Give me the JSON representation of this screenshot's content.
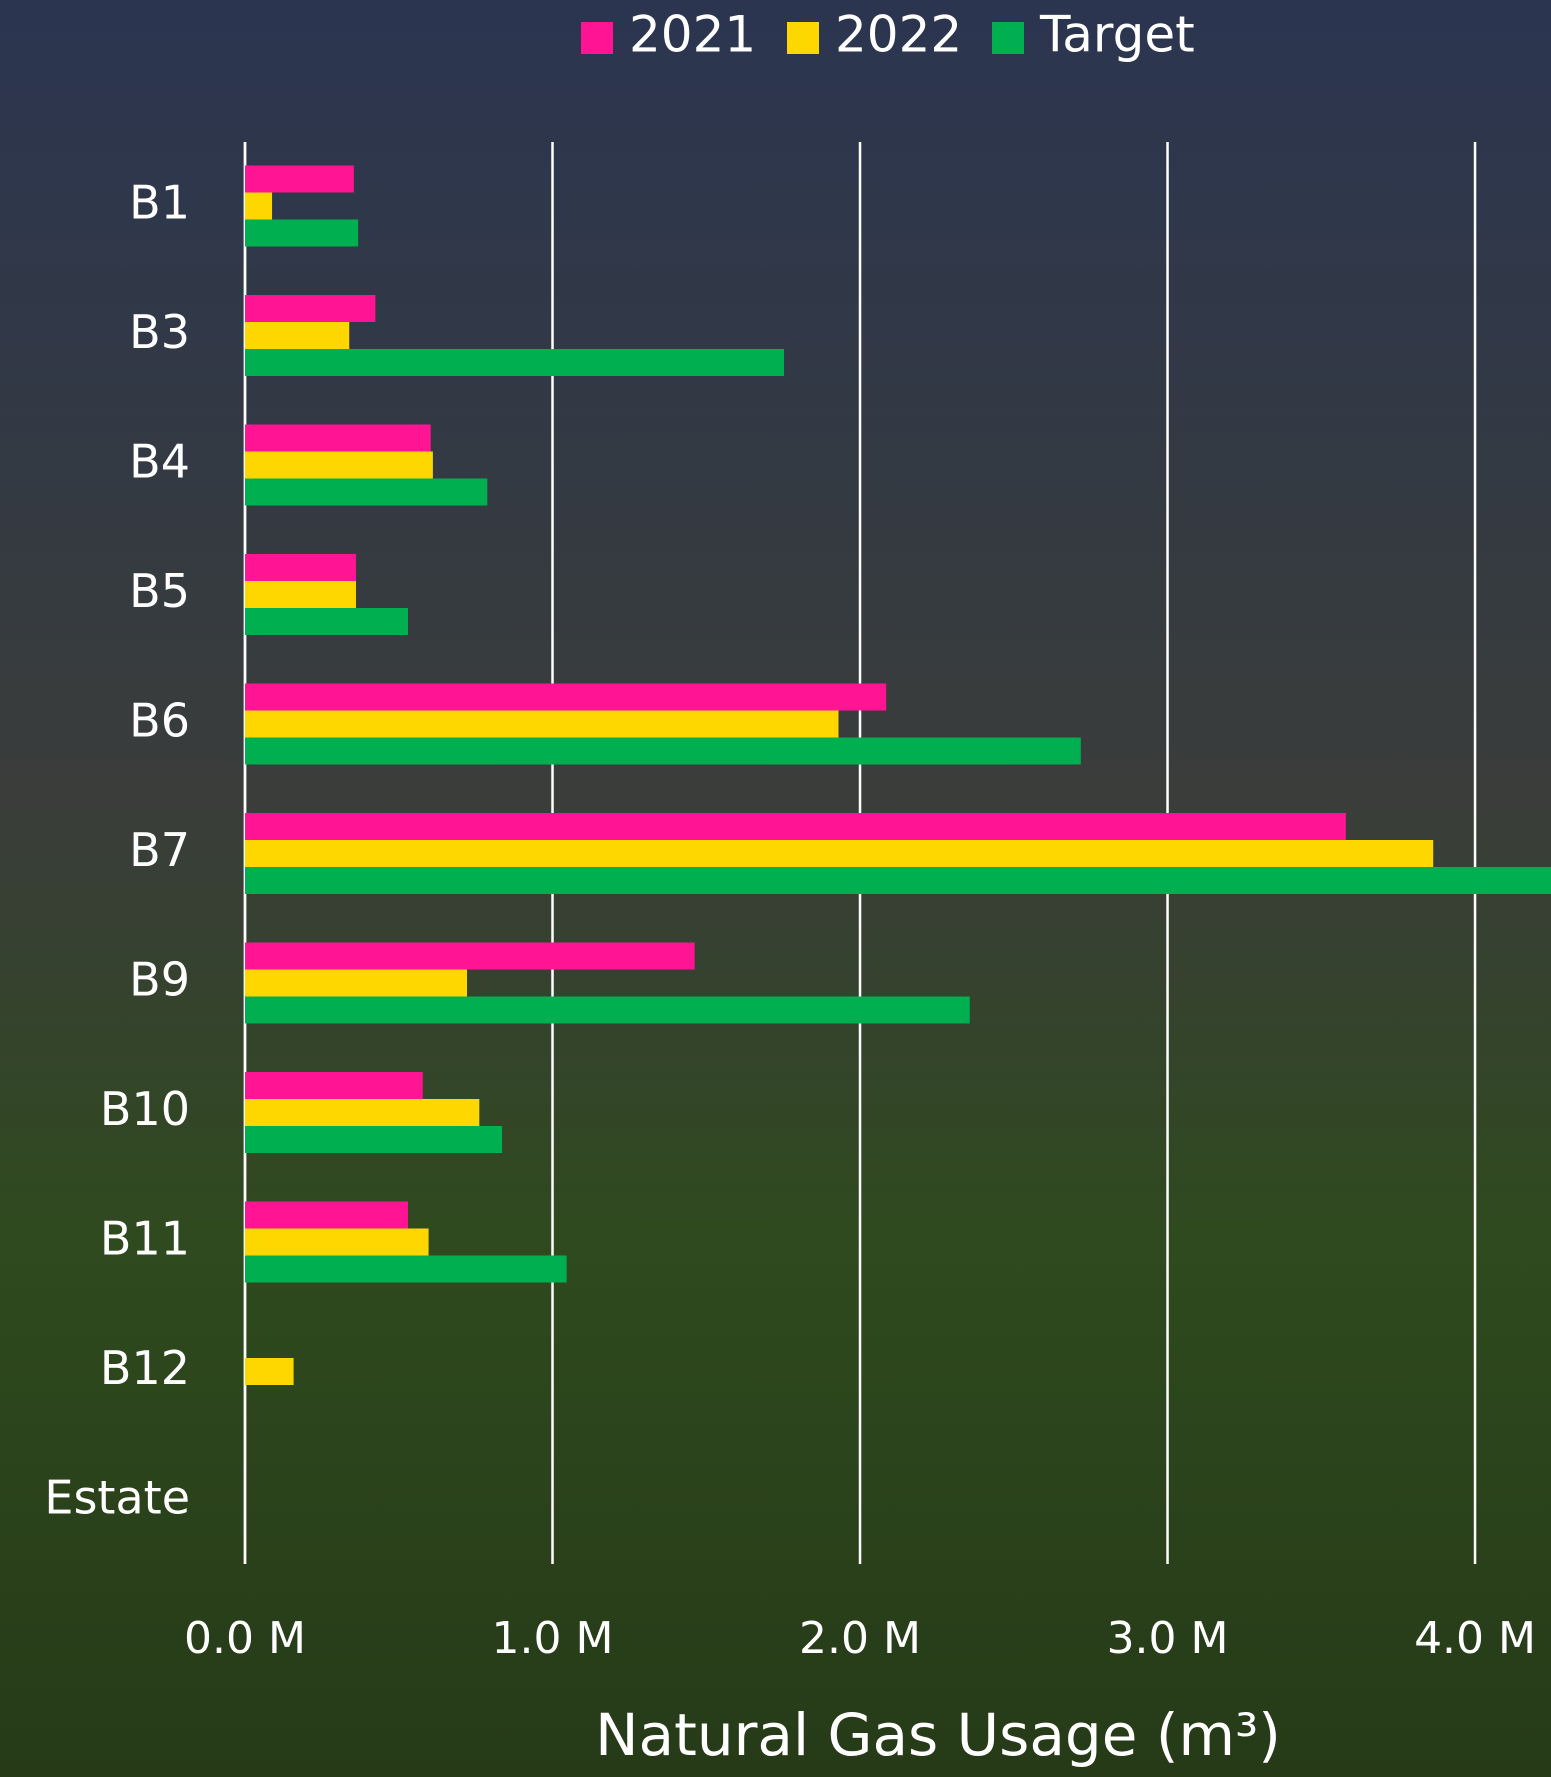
{
  "chart_data": {
    "type": "bar",
    "orientation": "horizontal",
    "x_label": "Natural Gas Usage (m³)",
    "categories": [
      "B1",
      "B3",
      "B4",
      "B5",
      "B6",
      "B7",
      "B9",
      "B10",
      "B11",
      "B12",
      "Estate"
    ],
    "series": [
      {
        "name": "2021",
        "color": "#ff1493",
        "values": [
          0.354,
          0.424,
          0.604,
          0.361,
          2.085,
          3.58,
          1.462,
          0.578,
          0.53,
          null,
          null
        ]
      },
      {
        "name": "2022",
        "color": "#ffd700",
        "values": [
          0.088,
          0.339,
          0.611,
          0.361,
          1.93,
          3.864,
          0.722,
          0.762,
          0.597,
          0.158,
          null
        ]
      },
      {
        "name": "Target",
        "color": "#00b050",
        "values": [
          0.368,
          1.753,
          0.788,
          0.53,
          2.718,
          4.3,
          2.357,
          0.836,
          1.046,
          null,
          null
        ]
      }
    ],
    "xlim": [
      0,
      4.247
    ],
    "xticks": [
      {
        "value": 0,
        "label": "0.0 M"
      },
      {
        "value": 1,
        "label": "1.0 M"
      },
      {
        "value": 2,
        "label": "2.0 M"
      },
      {
        "value": 3,
        "label": "3.0 M"
      },
      {
        "value": 4,
        "label": "4.0 M"
      }
    ],
    "grid": true,
    "legend": "top"
  }
}
